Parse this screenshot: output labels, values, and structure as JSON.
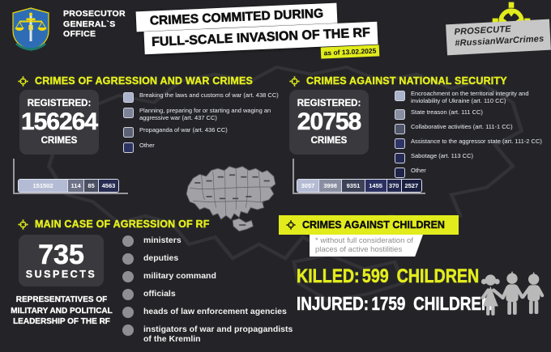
{
  "colors": {
    "background": "#242428",
    "panel": "#3a3a3e",
    "accent_yellow": "#e2ec1c",
    "white": "#ffffff",
    "map_gray": "#a2a2a6"
  },
  "header": {
    "org_name": "PROSECUTOR\nGENERAL`S\nOFFICE",
    "title_line1": "CRIMES COMMITED DURING",
    "title_line2": "FULL-SCALE INVASION OF THE RF",
    "date_note": "as of 13.02.2025",
    "campaign_line1": "PROSECUTE",
    "campaign_line2": "#RussianWarCrimes"
  },
  "war_crimes": {
    "heading": "CRIMES OF AGRESSION AND WAR CRIMES",
    "registered_label": "REGISTERED:",
    "total": "156264",
    "total_unit": "CRIMES",
    "legend": [
      {
        "label": "Breaking the laws and customs of war (art. 438 CC)",
        "color": "#abb2cb"
      },
      {
        "label": "Planning, preparing for or starting and waging an aggressive war (art. 437 CC)",
        "color": "#7d8296"
      },
      {
        "label": "Propaganda of war (art. 436 CC)",
        "color": "#5d6174"
      },
      {
        "label": "Other",
        "color": "#2c3363"
      }
    ],
    "bar": [
      {
        "value": "151502",
        "color": "#b4bbd4",
        "width_pct": 50
      },
      {
        "value": "114",
        "color": "#6e7388",
        "width_pct": 16
      },
      {
        "value": "85",
        "color": "#4a4f61",
        "width_pct": 14
      },
      {
        "value": "4563",
        "color": "#272c52",
        "width_pct": 20
      }
    ]
  },
  "national_security": {
    "heading": "CRIMES AGAINST NATIONAL SECURITY",
    "registered_label": "REGISTERED:",
    "total": "20758",
    "total_unit": "CRIMES",
    "legend": [
      {
        "label": "Encroachment on the territorial integrity and inviolability of Ukraine (art. 110 CC)",
        "color": "#abb2cb"
      },
      {
        "label": "State treason (art. 111 CC)",
        "color": "#8a8ea1"
      },
      {
        "label": "Collaborative activities (art. 111-1 CC)",
        "color": "#50556a"
      },
      {
        "label": "Assistance to the aggressor state (art. 111-2 CC)",
        "color": "#2e3566"
      },
      {
        "label": "Sabotage (art. 113 CC)",
        "color": "#252a54"
      },
      {
        "label": "Other",
        "color": "#1e2347"
      }
    ],
    "bar": [
      {
        "value": "3057",
        "color": "#b4bbd4",
        "width_pct": 17.5
      },
      {
        "value": "3998",
        "color": "#8a8ea1",
        "width_pct": 18.5
      },
      {
        "value": "9351",
        "color": "#3d4257",
        "width_pct": 18.5
      },
      {
        "value": "1455",
        "color": "#2b3162",
        "width_pct": 17.5
      },
      {
        "value": "370",
        "color": "#232850",
        "width_pct": 11.5
      },
      {
        "value": "2527",
        "color": "#1b2042",
        "width_pct": 16.5
      }
    ]
  },
  "main_case": {
    "heading": "MAIN CASE OF AGRESSION OF RF",
    "total": "735",
    "total_unit": "SUSPECTS",
    "note": "REPRESENTATIVES OF MILITARY AND POLITICAL LEADERSHIP OF THE RF",
    "items": [
      "ministers",
      "deputies",
      "military command",
      "officials",
      "heads of law enforcement agencies",
      "instigators of war and propagandists of the Kremlin"
    ]
  },
  "children": {
    "heading": "CRIMES AGAINST CHILDREN",
    "footnote": "* without full consideration of\nplaces of active hostilities",
    "killed_label": "KILLED:",
    "killed_value": "599",
    "killed_unit": "CHILDREN",
    "injured_label": "INJURED:",
    "injured_value": "1759",
    "injured_unit": "CHILDREN"
  },
  "chart_data": [
    {
      "type": "bar",
      "variant": "horizontal-stacked",
      "title": "CRIMES OF AGRESSION AND WAR CRIMES (registered: 156264 crimes, as of 13.02.2025)",
      "categories": [
        "Breaking the laws and customs of war (art. 438 CC)",
        "Planning, preparing for or starting and waging an aggressive war (art. 437 CC)",
        "Propaganda of war (art. 436 CC)",
        "Other"
      ],
      "values": [
        151502,
        114,
        85,
        4563
      ],
      "total": 156264,
      "legend_position": "right",
      "grid": false
    },
    {
      "type": "bar",
      "variant": "horizontal-stacked",
      "title": "CRIMES AGAINST NATIONAL SECURITY (registered: 20758 crimes, as of 13.02.2025)",
      "categories": [
        "Encroachment on the territorial integrity and inviolability of Ukraine (art. 110 CC)",
        "State treason (art. 111 CC)",
        "Collaborative activities (art. 111-1 CC)",
        "Assistance to the aggressor state (art. 111-2 CC)",
        "Sabotage (art. 113 CC)",
        "Other"
      ],
      "values": [
        3057,
        3998,
        9351,
        1455,
        370,
        2527
      ],
      "total": 20758,
      "legend_position": "right",
      "grid": false
    }
  ]
}
